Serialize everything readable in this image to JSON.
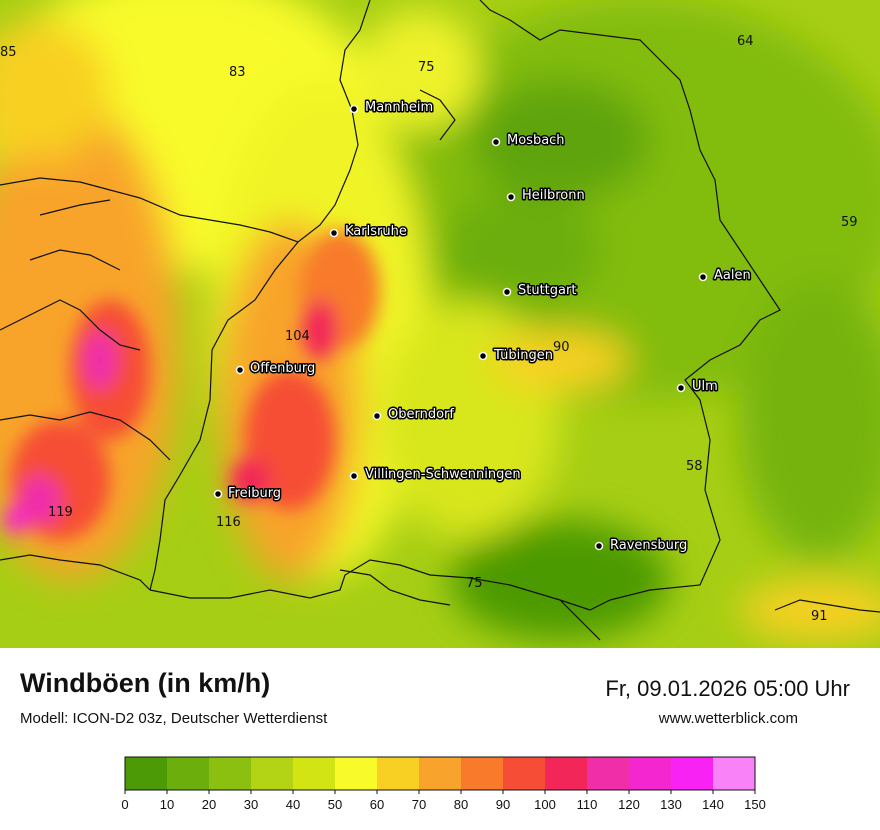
{
  "title": "Windböen (in km/h)",
  "subtitle": "Modell: ICON-D2 03z, Deutscher Wetterdienst",
  "datetime": "Fr, 09.01.2026 05:00 Uhr",
  "website": "www.wetterblick.com",
  "cities": [
    {
      "name": "Mannheim"
    },
    {
      "name": "Mosbach"
    },
    {
      "name": "Heilbronn"
    },
    {
      "name": "Karlsruhe"
    },
    {
      "name": "Aalen"
    },
    {
      "name": "Stuttgart"
    },
    {
      "name": "Offenburg"
    },
    {
      "name": "Tübingen"
    },
    {
      "name": "Ulm"
    },
    {
      "name": "Oberndorf"
    },
    {
      "name": "Villingen-Schwenningen"
    },
    {
      "name": "Freiburg"
    },
    {
      "name": "Ravensburg"
    }
  ],
  "values": [
    "85",
    "83",
    "75",
    "64",
    "59",
    "104",
    "90",
    "58",
    "119",
    "116",
    "75",
    "91"
  ],
  "legend": {
    "ticks": [
      "0",
      "10",
      "20",
      "30",
      "40",
      "50",
      "60",
      "70",
      "80",
      "90",
      "100",
      "110",
      "120",
      "130",
      "140",
      "150"
    ],
    "colors": [
      "#4c9a06",
      "#6cae0c",
      "#8cc010",
      "#b2d414",
      "#d2e414",
      "#f8fa2a",
      "#f8d024",
      "#f8a42c",
      "#f87a2a",
      "#f64e36",
      "#f22658",
      "#f02ea8",
      "#f426d0",
      "#f822f4",
      "#fa82f8"
    ]
  }
}
